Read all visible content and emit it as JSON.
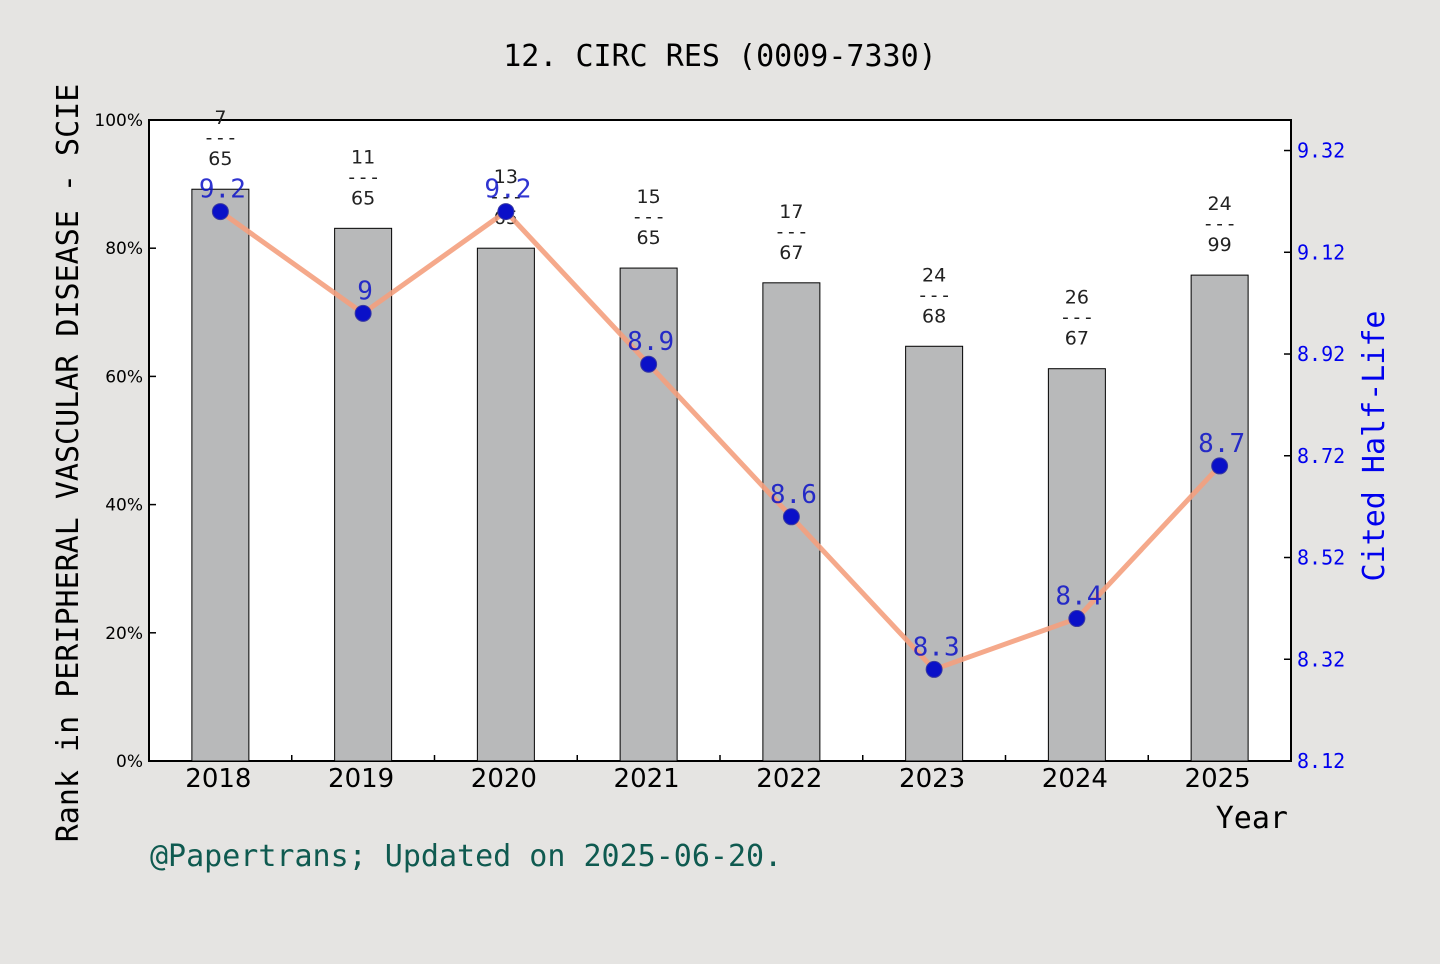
{
  "chart_data": {
    "type": "bar",
    "title": "12. CIRC RES (0009-7330)",
    "xlabel": "Year",
    "ylabel": "Rank in PERIPHERAL VASCULAR DISEASE - SCIE",
    "y2label": "Cited Half-Life",
    "footer": "@Papertrans; Updated on 2025-06-20.",
    "categories": [
      "2018",
      "2019",
      "2020",
      "2021",
      "2022",
      "2023",
      "2024",
      "2025"
    ],
    "ylim": [
      0,
      100
    ],
    "yticks": [
      "0%",
      "20%",
      "40%",
      "60%",
      "80%",
      "100%"
    ],
    "y2lim": [
      8.12,
      9.38
    ],
    "y2ticks": [
      "8.12",
      "8.32",
      "8.52",
      "8.72",
      "8.92",
      "9.12",
      "9.32"
    ],
    "grid": false,
    "series": [
      {
        "kind": "bar",
        "values": [
          89.2,
          83.1,
          80.0,
          76.9,
          74.6,
          64.7,
          61.2,
          75.8
        ],
        "rank_labels": [
          {
            "rank": "7",
            "sep": "---",
            "total": "65"
          },
          {
            "rank": "11",
            "sep": "---",
            "total": "65"
          },
          {
            "rank": "13",
            "sep": "---",
            "total": "65"
          },
          {
            "rank": "15",
            "sep": "---",
            "total": "65"
          },
          {
            "rank": "17",
            "sep": "---",
            "total": "67"
          },
          {
            "rank": "24",
            "sep": "---",
            "total": "68"
          },
          {
            "rank": "26",
            "sep": "---",
            "total": "67"
          },
          {
            "rank": "24",
            "sep": "---",
            "total": "99"
          }
        ],
        "color": "#b8b9ba"
      },
      {
        "kind": "line",
        "axis": "right",
        "values": [
          9.2,
          9.0,
          9.2,
          8.9,
          8.6,
          8.3,
          8.4,
          8.7
        ],
        "labels": [
          "9.2",
          "9",
          "9.2",
          "8.9",
          "8.6",
          "8.3",
          "8.4",
          "8.7"
        ],
        "color": "#f4a07e",
        "marker_color": "#0a10c8"
      }
    ],
    "colors": {
      "left_axis_text": "#000000",
      "right_axis_text": "#0000ee",
      "footer_text": "#0f5a50",
      "background": "#e5e4e2",
      "plot_background": "#ffffff"
    }
  }
}
